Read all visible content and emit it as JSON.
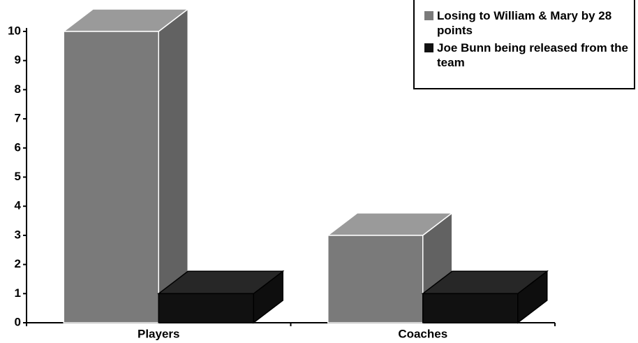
{
  "chart_data": {
    "type": "bar3d",
    "categories": [
      "Players",
      "Coaches"
    ],
    "series": [
      {
        "name": "Losing to William & Mary by 28 points",
        "color": "#7a7a7a",
        "values": [
          10,
          3
        ]
      },
      {
        "name": "Joe Bunn being released from the team",
        "color": "#111111",
        "values": [
          1,
          1
        ]
      }
    ],
    "ylim": [
      0,
      10
    ],
    "yticks": [
      0,
      1,
      2,
      3,
      4,
      5,
      6,
      7,
      8,
      9,
      10
    ],
    "legend": "top-right"
  }
}
